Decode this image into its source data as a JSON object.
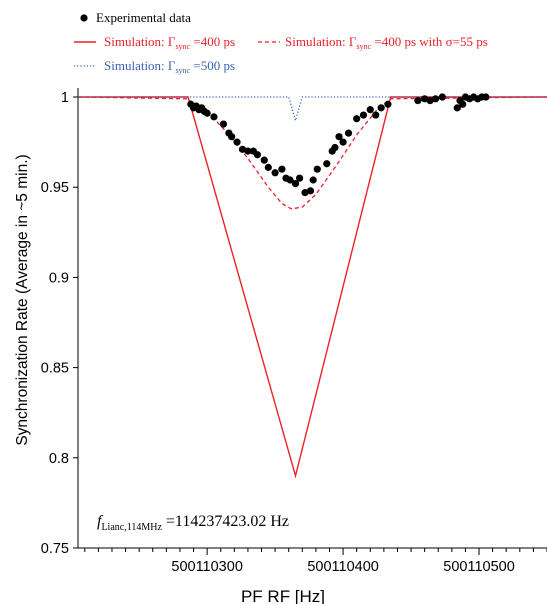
{
  "chart_data": {
    "type": "scatter",
    "xlabel": "PF RF  [Hz]",
    "ylabel": "Synchronization Rate (Average in ~5 min.)",
    "xlim": [
      500110205,
      500110550
    ],
    "ylim": [
      0.75,
      1.005
    ],
    "xticks": [
      {
        "value": 500110300,
        "label": "500110300"
      },
      {
        "value": 500110400,
        "label": "500110400"
      },
      {
        "value": 500110500,
        "label": "500110500"
      }
    ],
    "yticks": [
      {
        "value": 0.75,
        "label": "0.75"
      },
      {
        "value": 0.8,
        "label": "0.8"
      },
      {
        "value": 0.85,
        "label": "0.85"
      },
      {
        "value": 0.9,
        "label": "0.9"
      },
      {
        "value": 0.95,
        "label": "0.95"
      },
      {
        "value": 1,
        "label": "1"
      }
    ],
    "legend": {
      "experimental": "Experimental data",
      "sim400_pre": "Simulation: Γ",
      "sim400_sub": "sync",
      "sim400_post": " =400 ps",
      "sim400s_pre": "Simulation: Γ",
      "sim400s_sub": "sync",
      "sim400s_post": " =400 ps with σ=55 ps",
      "sim500_pre": "Simulation: Γ",
      "sim500_sub": "sync",
      "sim500_post": " =500 ps"
    },
    "annotation": {
      "f": "f",
      "sub": "Lianc,114MHz",
      "value": " =114237423.02 Hz"
    },
    "series": [
      {
        "key": "sim400",
        "style": "solid",
        "color": "#e8222a",
        "x": [
          500110205,
          500110286,
          500110365,
          500110435,
          500110550
        ],
        "y": [
          1.0,
          1.0,
          0.79,
          1.0,
          1.0
        ]
      },
      {
        "key": "sim400s",
        "style": "dashed",
        "color": "#e8222a",
        "x": [
          500110205,
          500110285,
          500110300,
          500110315,
          500110330,
          500110345,
          500110355,
          500110362,
          500110370,
          500110380,
          500110395,
          500110410,
          500110425,
          500110435,
          500110550
        ],
        "y": [
          1.0,
          0.999,
          0.992,
          0.98,
          0.966,
          0.95,
          0.941,
          0.938,
          0.939,
          0.946,
          0.962,
          0.979,
          0.993,
          0.999,
          1.0
        ]
      },
      {
        "key": "sim500",
        "style": "dotted",
        "color": "#3a62b4",
        "x": [
          500110205,
          500110360,
          500110365,
          500110370,
          500110550
        ],
        "y": [
          1.0,
          1.0,
          0.987,
          1.0,
          1.0
        ]
      },
      {
        "key": "experimental",
        "style": "markers",
        "color": "#000000",
        "x": [
          500110288,
          500110290,
          500110292,
          500110294,
          500110296,
          500110298,
          500110300,
          500110305,
          500110312,
          500110316,
          500110318,
          500110322,
          500110326,
          500110330,
          500110334,
          500110337,
          500110342,
          500110345,
          500110350,
          500110355,
          500110358,
          500110361,
          500110365,
          500110368,
          500110372,
          500110376,
          500110378,
          500110381,
          500110388,
          500110392,
          500110394,
          500110397,
          500110400,
          500110404,
          500110410,
          500110415,
          500110420,
          500110424,
          500110428,
          500110433,
          500110455,
          500110460,
          500110464,
          500110468,
          500110473,
          500110484,
          500110486,
          500110488,
          500110490,
          500110493,
          500110496,
          500110499,
          500110502,
          500110505
        ],
        "y": [
          0.996,
          0.994,
          0.995,
          0.993,
          0.994,
          0.992,
          0.991,
          0.989,
          0.985,
          0.98,
          0.978,
          0.975,
          0.971,
          0.97,
          0.97,
          0.968,
          0.965,
          0.961,
          0.958,
          0.96,
          0.955,
          0.954,
          0.952,
          0.955,
          0.947,
          0.948,
          0.954,
          0.96,
          0.963,
          0.97,
          0.972,
          0.978,
          0.975,
          0.98,
          0.988,
          0.99,
          0.993,
          0.99,
          0.994,
          0.996,
          0.998,
          0.999,
          0.998,
          0.999,
          1.0,
          0.994,
          0.998,
          0.996,
          1.0,
          0.999,
          1.0,
          0.999,
          1.0,
          1.0
        ]
      }
    ]
  }
}
